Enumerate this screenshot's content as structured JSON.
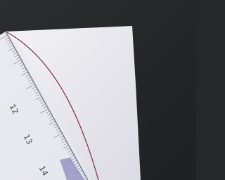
{
  "ruler": {
    "labels": [
      "12",
      "13",
      "14"
    ]
  }
}
